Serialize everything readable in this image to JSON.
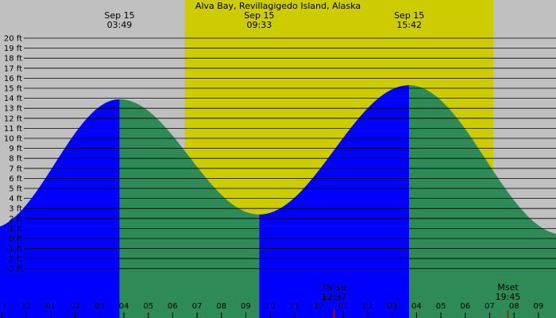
{
  "title": "Alva Bay, Revillagigedo Island, Alaska",
  "colors": {
    "night": "#c0c0c0",
    "day": "#cccc00",
    "rising": "#0000ff",
    "falling": "#2e8b57",
    "grid": "#000000",
    "moon_tick": "#cc0000"
  },
  "chart_data": {
    "type": "area",
    "x_unit": "hour of day",
    "y_unit": "ft",
    "ylim": [
      -4,
      20
    ],
    "xlim": [
      -1.2,
      21.3
    ],
    "ytick_labels": [
      "-3 ft",
      "-2 ft",
      "-1 ft",
      "0 ft",
      "1 ft",
      "2 ft",
      "3 ft",
      "4 ft",
      "5 ft",
      "6 ft",
      "7 ft",
      "8 ft",
      "9 ft",
      "10 ft",
      "11 ft",
      "12 ft",
      "13 ft",
      "14 ft",
      "15 ft",
      "16 ft",
      "17 ft",
      "18 ft",
      "19 ft",
      "20 ft"
    ],
    "xtick_labels": [
      "11",
      "12",
      "01",
      "02",
      "03",
      "04",
      "05",
      "06",
      "07",
      "08",
      "09",
      "10",
      "11",
      "12",
      "01",
      "02",
      "03",
      "04",
      "05",
      "06",
      "07",
      "08",
      "09"
    ],
    "daylight": [
      6.5,
      19.15
    ],
    "extremes": [
      {
        "type": "low",
        "time_hours": -1.5,
        "height_ft": 1.0
      },
      {
        "type": "high",
        "time_hours": 3.82,
        "height_ft": 13.9,
        "date": "Sep 15",
        "time": "03:49"
      },
      {
        "type": "low",
        "time_hours": 9.55,
        "height_ft": 2.4,
        "date": "Sep 15",
        "time": "09:33"
      },
      {
        "type": "high",
        "time_hours": 15.7,
        "height_ft": 15.3,
        "date": "Sep 15",
        "time": "15:42"
      },
      {
        "type": "low",
        "time_hours": 22.0,
        "height_ft": 0.4
      }
    ],
    "moon_events": [
      {
        "label": "Mrise",
        "time": "12:37",
        "time_hours": 12.62
      },
      {
        "label": "Mset",
        "time": "19:45",
        "time_hours": 19.75
      }
    ],
    "grid": true
  }
}
